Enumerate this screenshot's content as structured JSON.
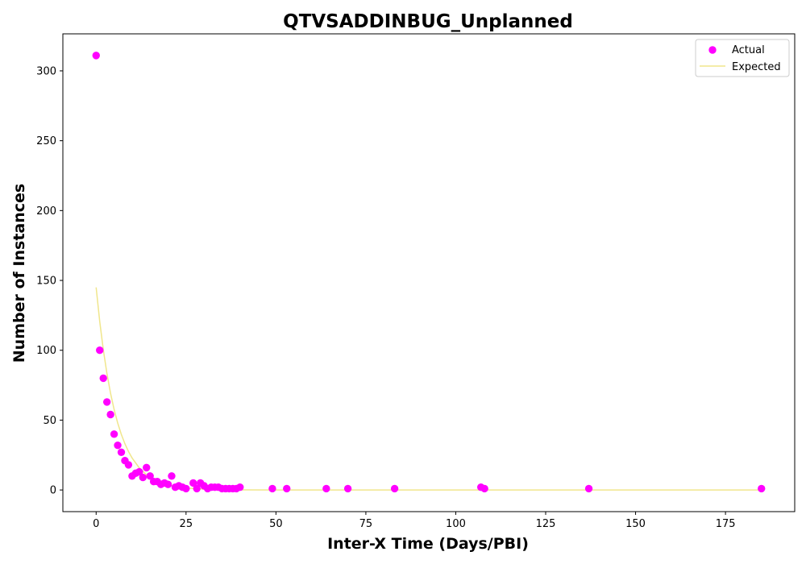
{
  "chart_data": {
    "type": "scatter",
    "title": "QTVSADDINBUG_Unplanned",
    "xlabel": "Inter-X Time (Days/PBI)",
    "ylabel": "Number of Instances",
    "xlim": [
      -9.25,
      194.25
    ],
    "ylim": [
      -15.5,
      326.5
    ],
    "xticks": [
      0,
      25,
      50,
      75,
      100,
      125,
      150,
      175
    ],
    "yticks": [
      0,
      50,
      100,
      150,
      200,
      250,
      300
    ],
    "grid": false,
    "legend_position": "top-right",
    "series": [
      {
        "name": "Actual",
        "kind": "scatter",
        "color": "#ff00ff",
        "points": [
          [
            0,
            311
          ],
          [
            1,
            100
          ],
          [
            2,
            80
          ],
          [
            3,
            63
          ],
          [
            4,
            54
          ],
          [
            5,
            40
          ],
          [
            6,
            32
          ],
          [
            7,
            27
          ],
          [
            8,
            21
          ],
          [
            9,
            18
          ],
          [
            10,
            10
          ],
          [
            11,
            12
          ],
          [
            12,
            13
          ],
          [
            13,
            9
          ],
          [
            14,
            16
          ],
          [
            15,
            10
          ],
          [
            16,
            6
          ],
          [
            17,
            6
          ],
          [
            18,
            4
          ],
          [
            19,
            5
          ],
          [
            20,
            4
          ],
          [
            21,
            10
          ],
          [
            22,
            2
          ],
          [
            23,
            3
          ],
          [
            24,
            2
          ],
          [
            25,
            1
          ],
          [
            27,
            5
          ],
          [
            28,
            1
          ],
          [
            29,
            5
          ],
          [
            30,
            3
          ],
          [
            31,
            1
          ],
          [
            32,
            2
          ],
          [
            33,
            2
          ],
          [
            34,
            2
          ],
          [
            35,
            1
          ],
          [
            36,
            1
          ],
          [
            37,
            1
          ],
          [
            38,
            1
          ],
          [
            39,
            1
          ],
          [
            40,
            2
          ],
          [
            49,
            1
          ],
          [
            53,
            1
          ],
          [
            64,
            1
          ],
          [
            70,
            1
          ],
          [
            83,
            1
          ],
          [
            107,
            2
          ],
          [
            108,
            1
          ],
          [
            137,
            1
          ],
          [
            185,
            1
          ]
        ]
      },
      {
        "name": "Expected",
        "kind": "line",
        "color": "#f0e68c",
        "points": [
          [
            0,
            145
          ],
          [
            1,
            120.6
          ],
          [
            2,
            100.3
          ],
          [
            3,
            83.4
          ],
          [
            4,
            69.3
          ],
          [
            5,
            57.6
          ],
          [
            6,
            47.9
          ],
          [
            7,
            39.8
          ],
          [
            8,
            33.1
          ],
          [
            9,
            27.5
          ],
          [
            10,
            22.9
          ],
          [
            12,
            15.8
          ],
          [
            14,
            10.9
          ],
          [
            16,
            7.5
          ],
          [
            18,
            5.2
          ],
          [
            20,
            3.6
          ],
          [
            22,
            2.5
          ],
          [
            25,
            1.4
          ],
          [
            30,
            0.6
          ],
          [
            35,
            0.2
          ],
          [
            40,
            0.1
          ],
          [
            50,
            0
          ],
          [
            75,
            0
          ],
          [
            100,
            0
          ],
          [
            125,
            0
          ],
          [
            150,
            0
          ],
          [
            175,
            0
          ],
          [
            185,
            0
          ]
        ]
      }
    ]
  }
}
